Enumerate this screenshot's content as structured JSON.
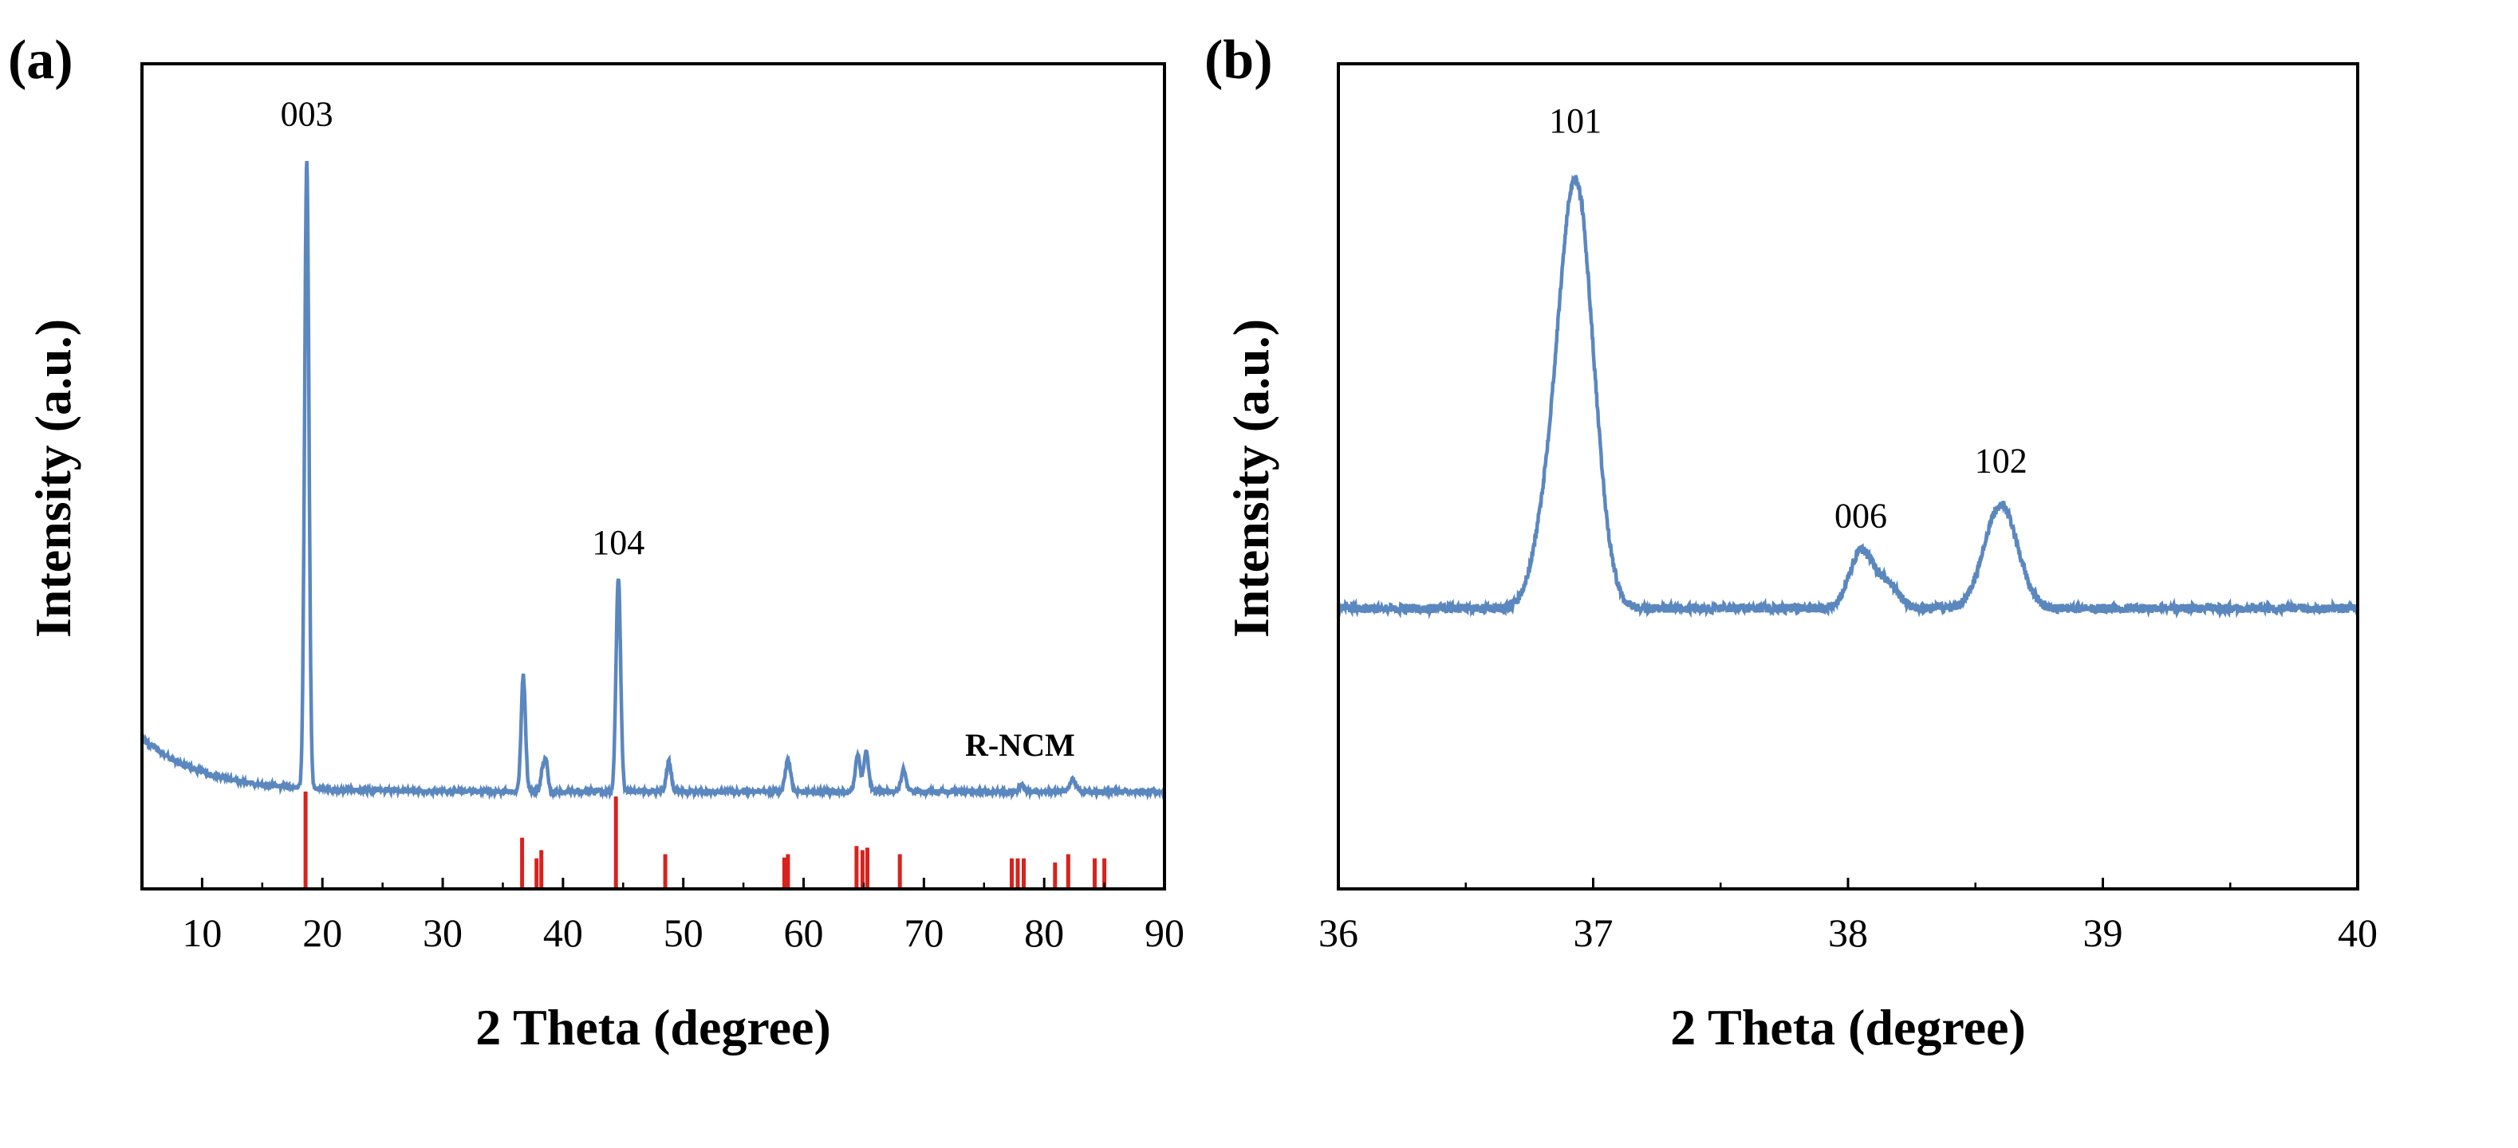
{
  "colors": {
    "pattern": "#5b87bf",
    "reference": "#d9221c",
    "axis": "#000000"
  },
  "chart_data": [
    {
      "panel": "(a)",
      "type": "line",
      "xlabel": "2 Theta (degree)",
      "ylabel": "Intensity (a.u.)",
      "xlim": [
        5,
        90
      ],
      "ylim": [
        0,
        100
      ],
      "xticks": [
        10,
        20,
        30,
        40,
        50,
        60,
        70,
        80,
        90
      ],
      "series_label": "R-NCM",
      "baseline": {
        "start": 18.3,
        "end": 11.8,
        "decay": 5
      },
      "peaks": [
        {
          "x": 18.7,
          "h": 76,
          "w": 0.18
        },
        {
          "x": 36.7,
          "h": 14,
          "w": 0.18
        },
        {
          "x": 38.3,
          "h": 2.6,
          "w": 0.15
        },
        {
          "x": 38.6,
          "h": 3.5,
          "w": 0.15
        },
        {
          "x": 44.6,
          "h": 26,
          "w": 0.19
        },
        {
          "x": 48.8,
          "h": 3.6,
          "w": 0.2
        },
        {
          "x": 58.7,
          "h": 3.8,
          "w": 0.22
        },
        {
          "x": 64.5,
          "h": 4.5,
          "w": 0.2
        },
        {
          "x": 65.2,
          "h": 4.8,
          "w": 0.2
        },
        {
          "x": 68.3,
          "h": 2.6,
          "w": 0.2
        },
        {
          "x": 78.1,
          "h": 0.8,
          "w": 0.2
        },
        {
          "x": 82.4,
          "h": 1.5,
          "w": 0.25
        }
      ],
      "annotations": [
        {
          "text": "003",
          "x": 18.7,
          "y": 92.5
        },
        {
          "text": "104",
          "x": 44.6,
          "y": 40.6
        }
      ],
      "reference_sticks": [
        {
          "x": 18.6,
          "h": 11.8
        },
        {
          "x": 36.6,
          "h": 6.2
        },
        {
          "x": 37.8,
          "h": 3.7
        },
        {
          "x": 38.2,
          "h": 4.7
        },
        {
          "x": 44.4,
          "h": 11.2
        },
        {
          "x": 48.5,
          "h": 4.2
        },
        {
          "x": 58.4,
          "h": 3.8
        },
        {
          "x": 58.7,
          "h": 4.2
        },
        {
          "x": 64.4,
          "h": 5.2
        },
        {
          "x": 64.9,
          "h": 4.7
        },
        {
          "x": 65.3,
          "h": 5.0
        },
        {
          "x": 68.0,
          "h": 4.2
        },
        {
          "x": 77.3,
          "h": 3.7
        },
        {
          "x": 77.8,
          "h": 3.7
        },
        {
          "x": 78.3,
          "h": 3.7
        },
        {
          "x": 80.9,
          "h": 3.2
        },
        {
          "x": 82.0,
          "h": 4.2
        },
        {
          "x": 84.2,
          "h": 3.7
        },
        {
          "x": 85.0,
          "h": 3.7
        }
      ]
    },
    {
      "panel": "(b)",
      "type": "line",
      "xlabel": "2 Theta  (degree)",
      "ylabel": "Intensity (a.u.)",
      "xlim": [
        36,
        40
      ],
      "ylim": [
        0,
        100
      ],
      "xticks": [
        36,
        37,
        38,
        39,
        40
      ],
      "baseline": {
        "start": 34,
        "end": 34,
        "decay": 1
      },
      "peaks": [
        {
          "x": 36.93,
          "h": 52,
          "w": 0.07
        },
        {
          "x": 36.8,
          "h": 5,
          "w": 0.05
        },
        {
          "x": 38.05,
          "h": 6.8,
          "w": 0.045
        },
        {
          "x": 38.15,
          "h": 3,
          "w": 0.045
        },
        {
          "x": 38.6,
          "h": 12.5,
          "w": 0.065
        }
      ],
      "annotations": [
        {
          "text": "101",
          "x": 36.93,
          "y": 91.7
        },
        {
          "text": "006",
          "x": 38.05,
          "y": 43.8
        },
        {
          "text": "102",
          "x": 38.6,
          "y": 50.5
        }
      ]
    }
  ]
}
